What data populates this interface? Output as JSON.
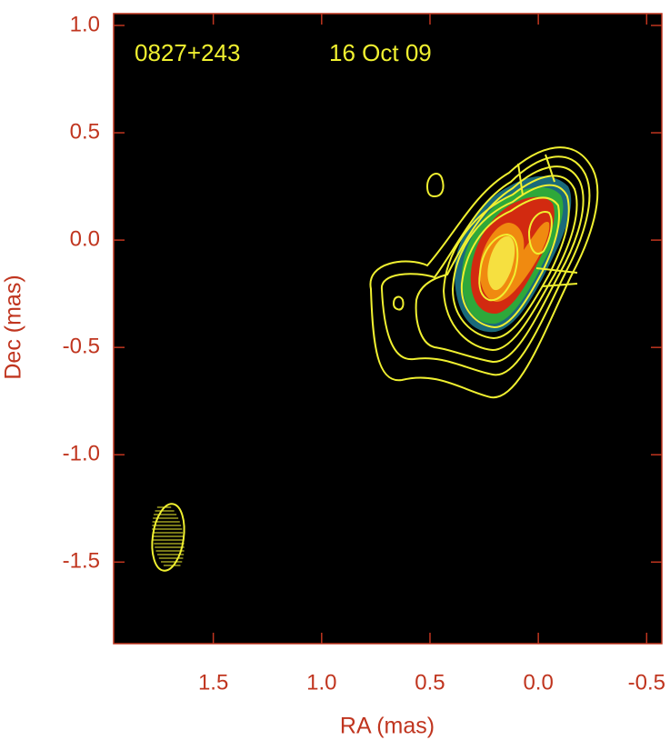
{
  "chart_data": {
    "type": "image",
    "annotations": [
      "0827+243",
      "16 Oct 09"
    ],
    "xlabel": "RA (mas)",
    "ylabel": "Dec (mas)",
    "xlim": [
      1.96,
      -0.57
    ],
    "ylim": [
      -1.88,
      1.055
    ],
    "xticks": [
      1.5,
      {
        "value": 1,
        "label": "1.0"
      },
      0.5,
      {
        "value": 0,
        "label": "0.0"
      },
      -0.5
    ],
    "yticks": [
      -1.5,
      {
        "value": -1,
        "label": "-1.0"
      },
      -0.5,
      {
        "value": 0,
        "label": "0.0"
      },
      0.5,
      {
        "value": 1,
        "label": "1.0"
      }
    ],
    "axis_color": "#c0351f",
    "contour_color": "#f0f030",
    "background": "#000000"
  }
}
